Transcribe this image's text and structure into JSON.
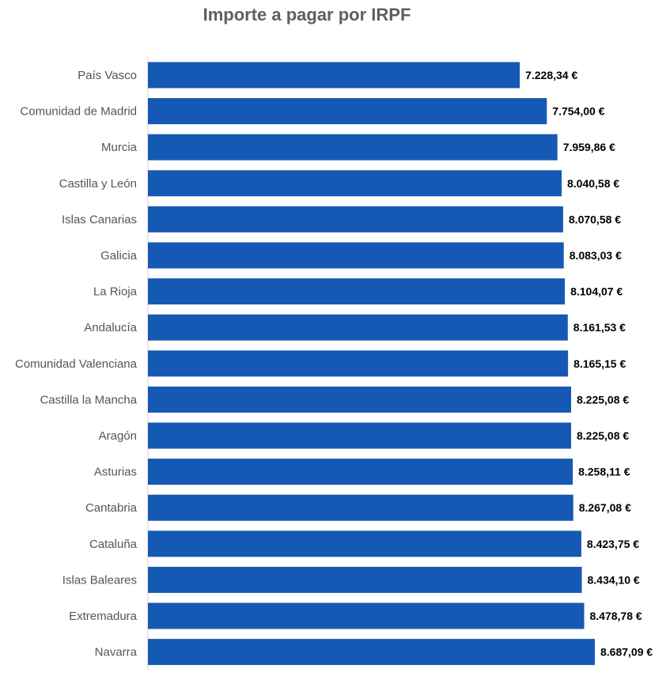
{
  "colors": {
    "bar": "#1659B4",
    "title": "#5f5f5f",
    "category_text": "#555555",
    "value_text": "#000000",
    "axis_line": "#d0d0d0"
  },
  "chart_data": {
    "type": "bar",
    "orientation": "horizontal",
    "title": "Importe a pagar por IRPF",
    "xlabel": "",
    "ylabel": "",
    "grid": false,
    "legend": "none",
    "xlim": [
      0,
      8700
    ],
    "categories": [
      "País Vasco",
      "Comunidad de Madrid",
      "Murcia",
      "Castilla y León",
      "Islas Canarias",
      "Galicia",
      "La Rioja",
      "Andalucía",
      "Comunidad Valenciana",
      "Castilla la Mancha",
      "Aragón",
      "Asturias",
      "Cantabria",
      "Cataluña",
      "Islas Baleares",
      "Extremadura",
      "Navarra"
    ],
    "values": [
      7228.34,
      7754.0,
      7959.86,
      8040.58,
      8070.58,
      8083.03,
      8104.07,
      8161.53,
      8165.15,
      8225.08,
      8225.08,
      8258.11,
      8267.08,
      8423.75,
      8434.1,
      8478.78,
      8687.09
    ],
    "data_labels": [
      "7.228,34 €",
      "7.754,00 €",
      "7.959,86 €",
      "8.040,58 €",
      "8.070,58 €",
      "8.083,03 €",
      "8.104,07 €",
      "8.161,53 €",
      "8.165,15 €",
      "8.225,08 €",
      "8.225,08 €",
      "8.258,11 €",
      "8.267,08 €",
      "8.423,75 €",
      "8.434,10 €",
      "8.478,78 €",
      "8.687,09 €"
    ]
  }
}
